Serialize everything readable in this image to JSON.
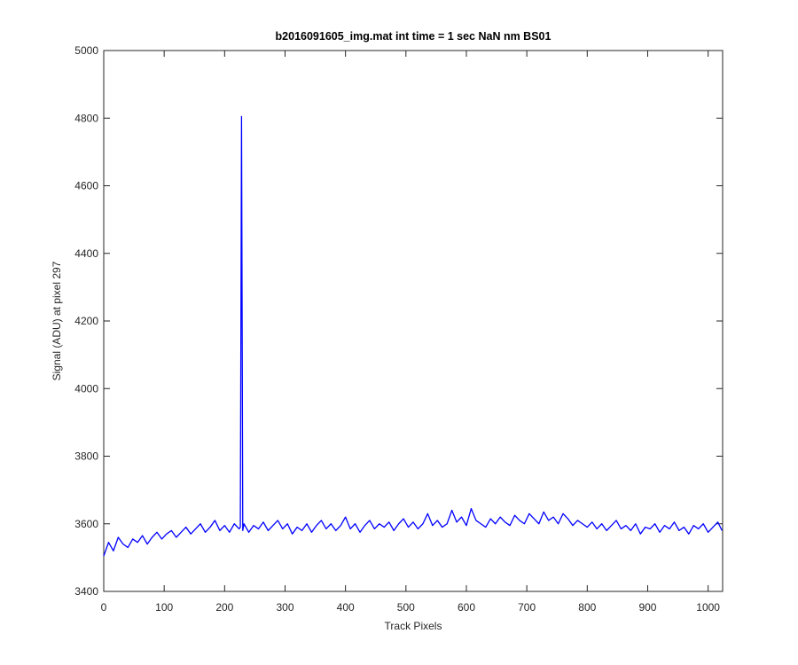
{
  "chart_data": {
    "type": "line",
    "title": "b2016091605_img.mat int time = 1 sec  NaN nm BS01",
    "xlabel": "Track Pixels",
    "ylabel": "Signal (ADU) at pixel 297",
    "xlim": [
      0,
      1024
    ],
    "ylim": [
      3400,
      5000
    ],
    "xticks": [
      0,
      100,
      200,
      300,
      400,
      500,
      600,
      700,
      800,
      900,
      1000
    ],
    "yticks": [
      3400,
      3600,
      3800,
      4000,
      4200,
      4400,
      4600,
      4800,
      5000
    ],
    "color": "#0000ff",
    "x": [
      0,
      8,
      16,
      24,
      32,
      40,
      48,
      56,
      64,
      72,
      80,
      88,
      96,
      104,
      112,
      120,
      128,
      136,
      144,
      152,
      160,
      168,
      176,
      184,
      192,
      200,
      208,
      216,
      224,
      226,
      228,
      230,
      232,
      240,
      248,
      256,
      264,
      272,
      280,
      288,
      296,
      304,
      312,
      320,
      328,
      336,
      344,
      352,
      360,
      368,
      376,
      384,
      392,
      400,
      408,
      416,
      424,
      432,
      440,
      448,
      456,
      464,
      472,
      480,
      488,
      496,
      504,
      512,
      520,
      528,
      536,
      544,
      552,
      560,
      568,
      576,
      584,
      592,
      600,
      608,
      616,
      624,
      632,
      640,
      648,
      656,
      664,
      672,
      680,
      688,
      696,
      704,
      712,
      720,
      728,
      736,
      744,
      752,
      760,
      768,
      776,
      784,
      792,
      800,
      808,
      816,
      824,
      832,
      840,
      848,
      856,
      864,
      872,
      880,
      888,
      896,
      904,
      912,
      920,
      928,
      936,
      944,
      952,
      960,
      968,
      976,
      984,
      992,
      1000,
      1008,
      1016,
      1023
    ],
    "values": [
      3505,
      3545,
      3520,
      3560,
      3540,
      3530,
      3555,
      3545,
      3565,
      3540,
      3560,
      3575,
      3555,
      3570,
      3580,
      3560,
      3575,
      3590,
      3570,
      3585,
      3600,
      3575,
      3590,
      3610,
      3580,
      3595,
      3575,
      3600,
      3585,
      3590,
      4805,
      3580,
      3600,
      3575,
      3595,
      3585,
      3605,
      3580,
      3595,
      3610,
      3585,
      3600,
      3570,
      3590,
      3580,
      3600,
      3575,
      3595,
      3610,
      3585,
      3600,
      3580,
      3595,
      3620,
      3585,
      3600,
      3575,
      3595,
      3610,
      3585,
      3600,
      3590,
      3605,
      3580,
      3600,
      3615,
      3590,
      3605,
      3585,
      3600,
      3630,
      3595,
      3610,
      3590,
      3600,
      3640,
      3605,
      3620,
      3595,
      3645,
      3610,
      3600,
      3590,
      3615,
      3600,
      3620,
      3605,
      3595,
      3625,
      3610,
      3600,
      3630,
      3615,
      3600,
      3635,
      3610,
      3620,
      3600,
      3630,
      3615,
      3595,
      3610,
      3600,
      3590,
      3605,
      3585,
      3600,
      3580,
      3595,
      3610,
      3585,
      3595,
      3580,
      3600,
      3570,
      3590,
      3585,
      3600,
      3575,
      3595,
      3585,
      3605,
      3580,
      3590,
      3570,
      3595,
      3585,
      3600,
      3575,
      3590,
      3605,
      3580
    ]
  }
}
